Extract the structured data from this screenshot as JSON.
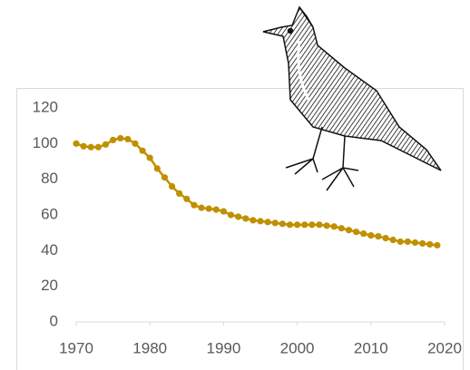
{
  "chart_data": {
    "type": "line",
    "x": [
      1970,
      1971,
      1972,
      1973,
      1974,
      1975,
      1976,
      1977,
      1978,
      1979,
      1980,
      1981,
      1982,
      1983,
      1984,
      1985,
      1986,
      1987,
      1988,
      1989,
      1990,
      1991,
      1992,
      1993,
      1994,
      1995,
      1996,
      1997,
      1998,
      1999,
      2000,
      2001,
      2002,
      2003,
      2004,
      2005,
      2006,
      2007,
      2008,
      2009,
      2010,
      2011,
      2012,
      2013,
      2014,
      2015,
      2016,
      2017,
      2018,
      2019
    ],
    "series": [
      {
        "color": "#bf9000",
        "values": [
          100,
          98.5,
          98,
          98,
          99.5,
          102,
          103,
          102.5,
          100,
          96,
          92,
          86,
          81,
          76,
          72,
          69,
          65.5,
          64,
          63.5,
          63,
          62,
          60,
          59,
          58,
          57,
          56.5,
          56,
          55.5,
          55,
          54.5,
          54.5,
          54.5,
          54.5,
          54.5,
          54,
          53.5,
          52.5,
          51.5,
          50.5,
          49.5,
          48.5,
          48,
          47,
          46,
          45,
          45,
          44.5,
          44,
          43.5,
          43
        ]
      }
    ],
    "xlim": [
      1970,
      2020
    ],
    "xticks": [
      1970,
      1980,
      1990,
      2000,
      2010,
      2020
    ],
    "ylim": [
      0,
      120
    ],
    "yticks": [
      0,
      20,
      40,
      60,
      80,
      100,
      120
    ],
    "grid": false
  }
}
